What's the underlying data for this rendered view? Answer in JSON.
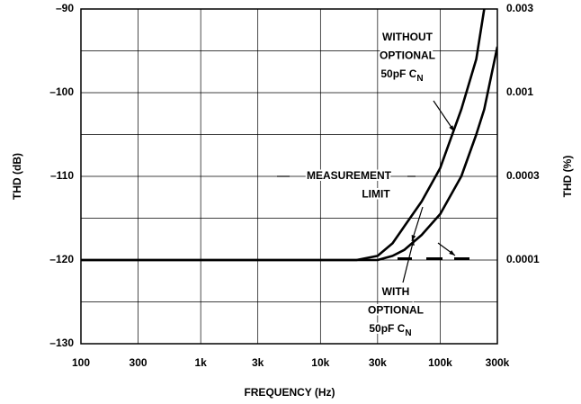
{
  "chart_data": {
    "type": "line",
    "x_label": "FREQUENCY (Hz)",
    "y_label": "THD (dB)",
    "y2_label": "THD (%)",
    "x": [
      100,
      1000,
      10000,
      20000,
      30000,
      40000,
      50000,
      70000,
      100000,
      150000,
      200000,
      233000,
      300000
    ],
    "series": [
      {
        "color": "#000000",
        "values": [
          -120,
          -120,
          -120,
          -120,
          -119.5,
          -118,
          -116,
          -113,
          -109,
          -102,
          -96,
          -90,
          null
        ]
      },
      {
        "color": "#000000",
        "values": [
          -120,
          -120,
          -120,
          -120,
          -120,
          -119.5,
          -118.8,
          -117,
          -114.5,
          -110,
          -105,
          -102,
          -94.5
        ]
      }
    ],
    "xlim": [
      100,
      300000
    ],
    "x_log": true,
    "xticks": [
      100,
      300,
      {
        "value": 1000,
        "label": "1k"
      },
      {
        "value": 3000,
        "label": "3k"
      },
      {
        "value": 10000,
        "label": "10k"
      },
      {
        "value": 30000,
        "label": "30k"
      },
      {
        "value": 100000,
        "label": "100k"
      },
      {
        "value": 300000,
        "label": "300k"
      }
    ],
    "ylim": [
      -130,
      -90
    ],
    "yticks": [
      {
        "value": -90,
        "label": "–90"
      },
      {
        "value": -100,
        "label": "–100"
      },
      {
        "value": -110,
        "label": "–110"
      },
      {
        "value": -120,
        "label": "–120"
      },
      {
        "value": -130,
        "label": "–130"
      }
    ],
    "minor_yticks": [
      -95,
      -105,
      -115,
      -125
    ],
    "y2lim": [
      3.16e-05,
      0.00316
    ],
    "y2_log": true,
    "y2ticks": [
      {
        "value": 0.00316,
        "label": "0.003"
      },
      0.001,
      {
        "value": 0.000316,
        "label": "0.0003"
      },
      0.0001
    ],
    "grid": true,
    "annotations": [
      {
        "lines": [
          "WITHOUT",
          "OPTIONAL"
        ],
        "last": "50pF C",
        "sub": "N"
      },
      {
        "lines": [
          "MEASUREMENT",
          "LIMIT"
        ]
      },
      {
        "lines": [
          "WITH",
          "OPTIONAL"
        ],
        "last": "50pF C",
        "sub": "N"
      }
    ]
  }
}
